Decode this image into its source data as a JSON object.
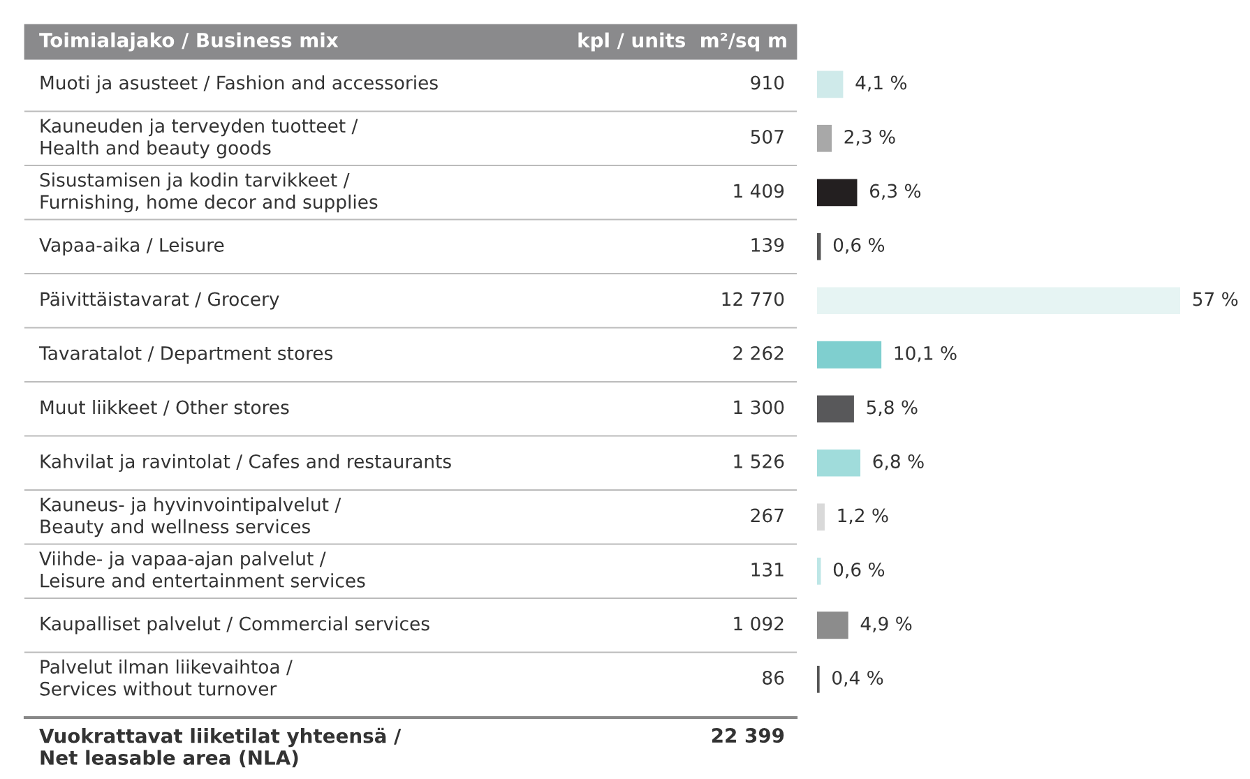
{
  "chart_data": {
    "type": "bar",
    "orientation": "horizontal",
    "title": "Toimialajako / Business mix",
    "categories": [
      "Muoti ja asusteet / Fashion and accessories",
      "Kauneuden ja terveyden tuotteet /\nHealth and beauty goods",
      "Sisustamisen ja kodin tarvikkeet /\nFurnishing, home decor and supplies",
      "Vapaa-aika / Leisure",
      "Päivittäistavarat / Grocery",
      "Tavaratalot / Department stores",
      "Muut liikkeet / Other stores",
      "Kahvilat ja ravintolat / Cafes and restaurants",
      "Kauneus- ja hyvinvointipalvelut /\nBeauty and wellness services",
      "Viihde- ja vapaa-ajan palvelut /\nLeisure and entertainment services",
      "Kaupalliset palvelut / Commercial services",
      "Palvelut ilman liikevaihtoa /\nServices without turnover"
    ],
    "values": [
      4.1,
      2.3,
      6.3,
      0.6,
      57,
      10.1,
      5.8,
      6.8,
      1.2,
      0.6,
      4.9,
      0.4
    ],
    "colors": [
      "#cfeaea",
      "#a8a8a8",
      "#231f20",
      "#555555",
      "#e6f4f3",
      "#7fcfcf",
      "#58585a",
      "#a0dcdb",
      "#d9d9d9",
      "#bde6e6",
      "#8c8c8c",
      "#555555"
    ],
    "value_labels": [
      "4,1 %",
      "2,3 %",
      "6,3 %",
      "0,6 %",
      "57 %",
      "10,1 %",
      "5,8 %",
      "6,8 %",
      "1,2 %",
      "0,6 %",
      "4,9 %",
      "0,4 %"
    ],
    "xlim": [
      0,
      57
    ],
    "annotations": [
      "kpl / units  m²/sq m",
      "Vuokrattavat liiketilat yhteensä /\nNet leasable area (NLA)",
      "22 399",
      "910",
      "507",
      "1 409",
      "139",
      "12 770",
      "2 262",
      "1 300",
      "1 526",
      "267",
      "131",
      "1 092",
      "86"
    ]
  }
}
